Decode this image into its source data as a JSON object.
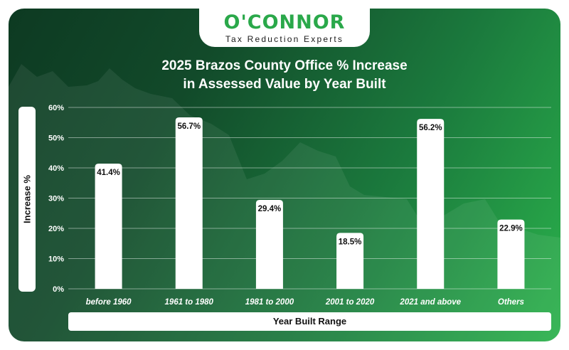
{
  "logo": {
    "name": "O'CONNOR",
    "tagline": "Tax Reduction Experts"
  },
  "colors": {
    "brand_green": "#2aa84a",
    "bar_fill": "#ffffff",
    "background_dark": "#0d3a22",
    "background_light": "#2bb24c"
  },
  "chart_data": {
    "type": "bar",
    "title_lines": [
      "2025 Brazos County Office % Increase",
      "in Assessed Value by Year Built"
    ],
    "xlabel": "Year Built Range",
    "ylabel": "Increase %",
    "categories": [
      "before 1960",
      "1961 to 1980",
      "1981 to 2000",
      "2001 to 2020",
      "2021 and above",
      "Others"
    ],
    "values": [
      41.4,
      56.7,
      29.4,
      18.5,
      56.2,
      22.9
    ],
    "value_labels": [
      "41.4%",
      "56.7%",
      "29.4%",
      "18.5%",
      "56.2%",
      "22.9%"
    ],
    "y_ticks": [
      "0%",
      "10%",
      "20%",
      "30%",
      "40%",
      "50%",
      "60%"
    ],
    "ylim": [
      0,
      60
    ],
    "grid": true,
    "legend": "none"
  }
}
